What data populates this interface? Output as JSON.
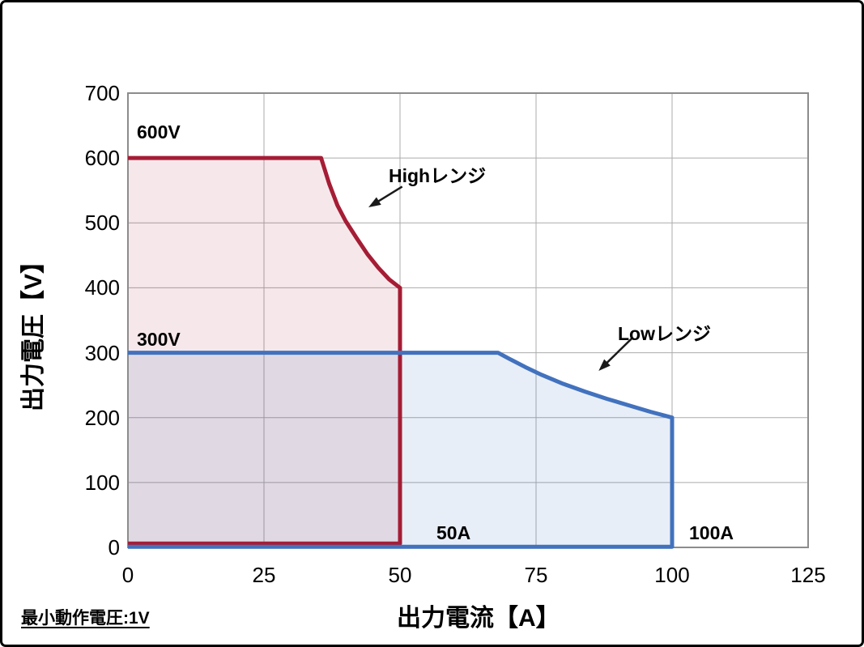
{
  "figure": {
    "note": "最小動作電圧:1V"
  },
  "chart_data": {
    "type": "area",
    "title": "",
    "xlabel": "出力電流【A】",
    "ylabel": "出力電圧【V】",
    "xlim": [
      0,
      125
    ],
    "ylim": [
      0,
      700
    ],
    "x_ticks": [
      0,
      25,
      50,
      75,
      100,
      125
    ],
    "y_ticks": [
      0,
      100,
      200,
      300,
      400,
      500,
      600,
      700
    ],
    "grid": true,
    "grid_color": "#ABABAB",
    "border_color": "#8C8C8C",
    "series": [
      {
        "name": "Highレンジ",
        "description": "High range output area: 600V max, 50A max, constant-power curve from 600V to 400V",
        "color": "#A51D35",
        "fill": "rgba(165,29,53,0.10)",
        "points": [
          [
            0,
            600
          ],
          [
            35.5,
            600
          ],
          [
            37,
            560
          ],
          [
            38.5,
            527
          ],
          [
            40,
            503
          ],
          [
            42,
            477
          ],
          [
            44,
            452
          ],
          [
            46,
            431
          ],
          [
            48,
            413
          ],
          [
            50,
            400
          ],
          [
            50,
            6
          ],
          [
            0,
            6
          ]
        ]
      },
      {
        "name": "Lowレンジ",
        "description": "Low range output area: 300V max, 100A max, constant-power curve from 300V to 200V",
        "color": "#4272BE",
        "fill": "rgba(66,114,190,0.12)",
        "points": [
          [
            0,
            300
          ],
          [
            68,
            300
          ],
          [
            70,
            291
          ],
          [
            73,
            278
          ],
          [
            76,
            266
          ],
          [
            80,
            252
          ],
          [
            84,
            240
          ],
          [
            88,
            229
          ],
          [
            92,
            219
          ],
          [
            96,
            209
          ],
          [
            100,
            200
          ],
          [
            100,
            1
          ],
          [
            0,
            1
          ]
        ]
      }
    ],
    "annotations": {
      "v600": "600V",
      "v300": "300V",
      "a50": "50A",
      "a100": "100A",
      "high_label": "Highレンジ",
      "low_label": "Lowレンジ",
      "arrow_color": "#1a1a1a",
      "arrows": [
        {
          "from": [
            50.4,
            556
          ],
          "to": [
            44.2,
            524
          ]
        },
        {
          "from": [
            92.6,
            322
          ],
          "to": [
            86.5,
            272
          ]
        }
      ]
    }
  }
}
